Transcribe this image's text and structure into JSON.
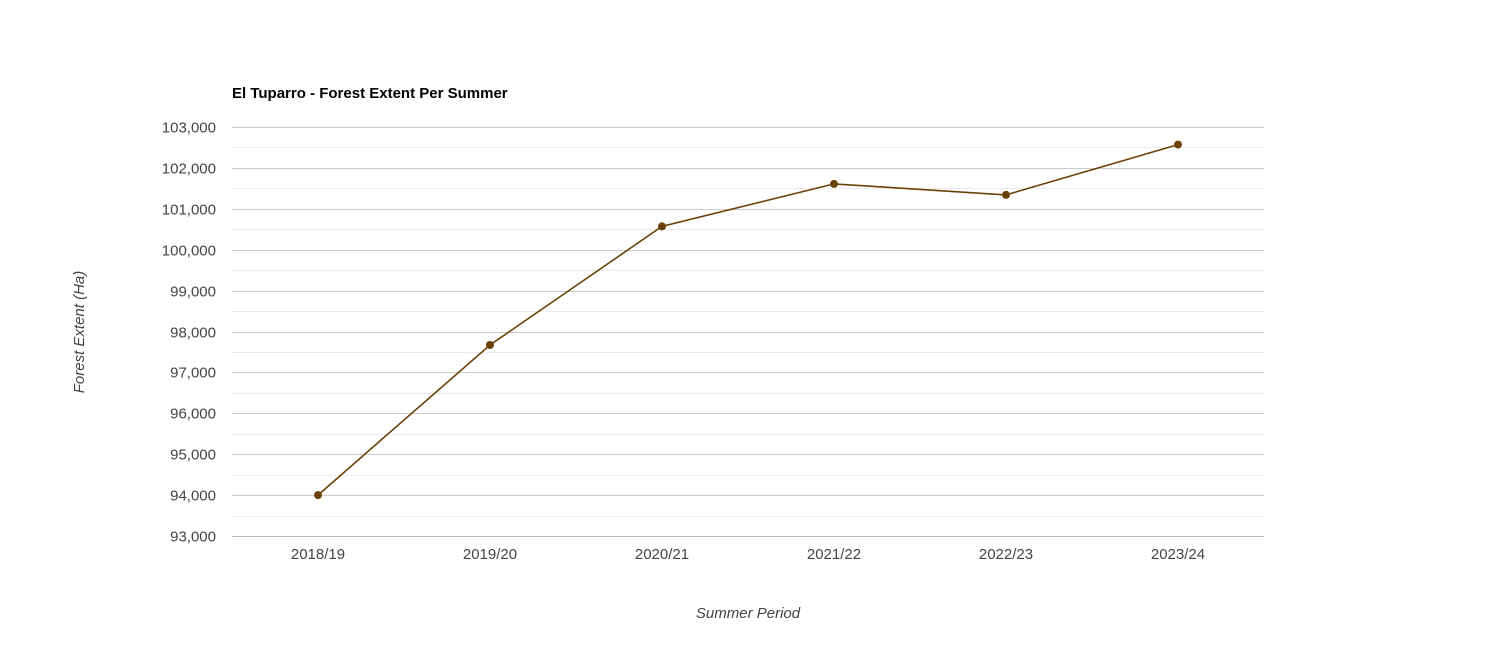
{
  "chart_data": {
    "type": "line",
    "title": "El Tuparro - Forest Extent Per Summer",
    "xlabel": "Summer Period",
    "ylabel": "Forest Extent (Ha)",
    "categories": [
      "2018/19",
      "2019/20",
      "2020/21",
      "2021/22",
      "2022/23",
      "2023/24"
    ],
    "series": [
      {
        "values": [
          94000,
          97670,
          100570,
          101610,
          101340,
          102570
        ],
        "color": "#6b4108"
      }
    ],
    "ylim": [
      93000,
      103000
    ],
    "yticks": [
      93000,
      94000,
      95000,
      96000,
      97000,
      98000,
      99000,
      100000,
      101000,
      102000,
      103000
    ],
    "ytick_labels": [
      "93,000",
      "94,000",
      "95,000",
      "96,000",
      "97,000",
      "98,000",
      "99,000",
      "100,000",
      "101,000",
      "102,000",
      "103,000"
    ],
    "grid": true,
    "minor_grid": true,
    "legend": "none"
  }
}
